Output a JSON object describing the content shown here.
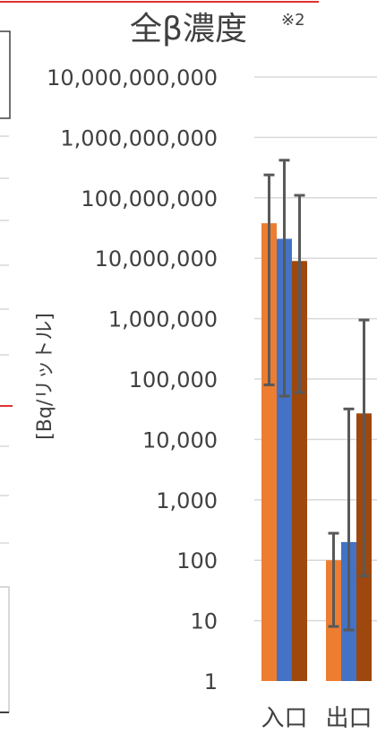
{
  "chart_data": {
    "type": "bar",
    "title": "全β濃度",
    "title_note": "※2",
    "ylabel": "[Bq/リットル]",
    "xlabel": "",
    "yscale": "log",
    "ylim": [
      1,
      10000000000
    ],
    "ytick_labels": [
      "10,000,000,000",
      "1,000,000,000",
      "100,000,000",
      "10,000,000",
      "1,000,000",
      "100,000",
      "10,000",
      "1,000",
      "100",
      "10",
      "1"
    ],
    "ytick_values": [
      10000000000,
      1000000000,
      100000000,
      10000000,
      1000000,
      100000,
      10000,
      1000,
      100,
      10,
      1
    ],
    "grid": true,
    "categories": [
      "入口",
      "出口"
    ],
    "series": [
      {
        "color": "#ED7D31",
        "values": [
          38000000,
          100
        ],
        "error_low": [
          80000,
          8
        ],
        "error_high": [
          240000000,
          280
        ]
      },
      {
        "color": "#4472C4",
        "values": [
          21000000,
          200
        ],
        "error_low": [
          52000,
          7
        ],
        "error_high": [
          420000000,
          32000
        ]
      },
      {
        "color": "#9E480E",
        "values": [
          9000000,
          27000
        ],
        "error_low": [
          60000,
          55
        ],
        "error_high": [
          110000000,
          950000
        ]
      }
    ],
    "error_bar_color": "#595959"
  },
  "decor": {
    "red_line_color": "#E03030",
    "frame_color": "#404040"
  }
}
